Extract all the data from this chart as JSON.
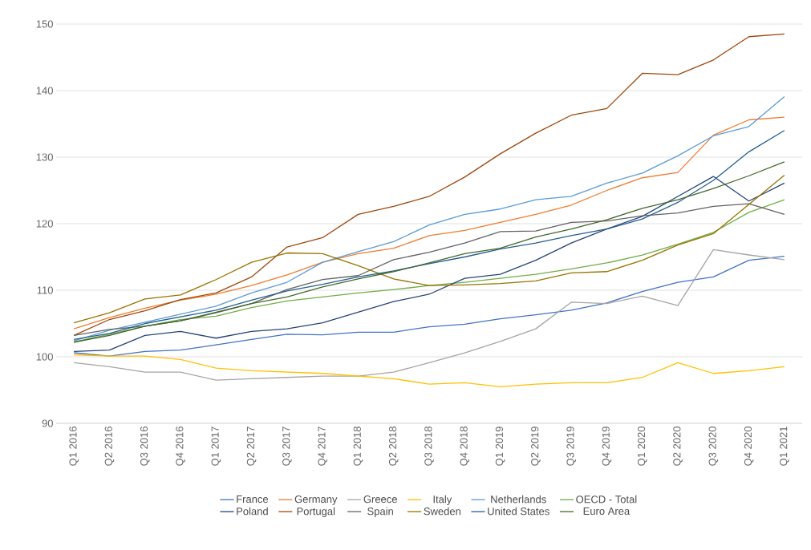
{
  "chart_data": {
    "type": "line",
    "categories": [
      "Q1 2016",
      "Q2 2016",
      "Q3 2016",
      "Q4 2016",
      "Q1 2017",
      "Q2 2017",
      "Q3 2017",
      "Q4 2017",
      "Q1 2018",
      "Q2 2018",
      "Q3 2018",
      "Q4 2018",
      "Q1 2019",
      "Q2 2019",
      "Q3 2019",
      "Q4 2019",
      "Q1 2020",
      "Q2 2020",
      "Q3 2020",
      "Q4 2020",
      "Q1 2021"
    ],
    "series": [
      {
        "name": "France",
        "color": "#4472c4",
        "values": [
          100.6,
          100.1,
          100.8,
          101.0,
          101.8,
          102.6,
          103.4,
          103.3,
          103.7,
          103.7,
          104.5,
          104.9,
          105.7,
          106.3,
          107.0,
          108.1,
          109.8,
          111.2,
          112.0,
          114.5,
          115.1
        ]
      },
      {
        "name": "Germany",
        "color": "#ed7d31",
        "values": [
          104.2,
          105.9,
          107.3,
          108.5,
          109.4,
          110.7,
          112.3,
          114.2,
          115.5,
          116.3,
          118.2,
          119.0,
          120.2,
          121.4,
          122.8,
          125.0,
          126.9,
          127.7,
          133.3,
          135.6,
          136.0
        ]
      },
      {
        "name": "Greece",
        "color": "#a5a5a5",
        "values": [
          99.1,
          98.5,
          97.7,
          97.7,
          96.5,
          96.7,
          96.9,
          97.1,
          97.1,
          97.7,
          99.1,
          100.6,
          102.3,
          104.2,
          108.2,
          108.0,
          109.1,
          107.7,
          116.1,
          115.3,
          114.6
        ]
      },
      {
        "name": "Italy",
        "color": "#ffc000",
        "values": [
          100.3,
          100.1,
          100.1,
          99.6,
          98.3,
          97.9,
          97.7,
          97.5,
          97.1,
          96.7,
          95.9,
          96.1,
          95.5,
          95.9,
          96.1,
          96.1,
          96.9,
          99.1,
          97.5,
          97.9,
          98.5
        ]
      },
      {
        "name": "Netherlands",
        "color": "#5b9bd5",
        "values": [
          102.4,
          104.0,
          105.2,
          106.4,
          107.6,
          109.6,
          111.2,
          114.2,
          115.8,
          117.3,
          119.8,
          121.4,
          122.2,
          123.6,
          124.1,
          126.1,
          127.6,
          130.2,
          133.2,
          134.6,
          139.1
        ]
      },
      {
        "name": "OECD - Total",
        "color": "#70ad47",
        "values": [
          102.2,
          103.4,
          104.6,
          105.6,
          106.1,
          107.4,
          108.4,
          109.0,
          109.6,
          110.1,
          110.7,
          111.2,
          111.8,
          112.4,
          113.2,
          114.1,
          115.3,
          116.9,
          118.7,
          121.7,
          123.6
        ]
      },
      {
        "name": "Poland",
        "color": "#264478",
        "values": [
          100.8,
          101.0,
          103.2,
          103.8,
          102.8,
          103.8,
          104.2,
          105.1,
          106.7,
          108.3,
          109.4,
          111.8,
          112.4,
          114.5,
          117.1,
          119.2,
          121.1,
          124.1,
          127.1,
          123.4,
          126.1
        ]
      },
      {
        "name": "Portugal",
        "color": "#9e480e",
        "values": [
          103.2,
          105.6,
          106.9,
          108.6,
          109.6,
          112.0,
          116.5,
          117.9,
          121.4,
          122.6,
          124.1,
          127.0,
          130.5,
          133.6,
          136.3,
          137.3,
          142.6,
          142.4,
          144.6,
          148.1,
          148.5
        ]
      },
      {
        "name": "Spain",
        "color": "#636363",
        "values": [
          103.2,
          104.1,
          104.6,
          105.4,
          106.6,
          108.0,
          110.1,
          111.6,
          112.2,
          114.6,
          115.7,
          117.1,
          118.8,
          118.9,
          120.2,
          120.4,
          121.2,
          121.6,
          122.6,
          123.0,
          121.4
        ]
      },
      {
        "name": "Sweden",
        "color": "#997300",
        "values": [
          105.1,
          106.6,
          108.7,
          109.3,
          111.6,
          114.2,
          115.6,
          115.5,
          113.7,
          111.7,
          110.7,
          110.8,
          111.0,
          111.4,
          112.6,
          112.8,
          114.5,
          116.8,
          118.5,
          122.9,
          127.3
        ]
      },
      {
        "name": "United States",
        "color": "#255e91",
        "values": [
          102.6,
          103.5,
          105.0,
          106.0,
          107.0,
          108.5,
          109.9,
          110.9,
          112.0,
          112.9,
          114.0,
          115.0,
          116.2,
          117.1,
          118.2,
          119.2,
          120.7,
          123.2,
          126.5,
          130.8,
          134.0
        ]
      },
      {
        "name": "Euro Area",
        "color": "#43682b",
        "values": [
          102.2,
          103.2,
          104.6,
          105.4,
          106.7,
          108.0,
          109.0,
          110.5,
          111.7,
          112.8,
          114.1,
          115.5,
          116.3,
          118.0,
          119.2,
          120.6,
          122.3,
          123.6,
          125.3,
          127.2,
          129.3
        ]
      }
    ],
    "ylim": [
      90,
      150
    ],
    "yticks": [
      90,
      100,
      110,
      120,
      130,
      140,
      150
    ],
    "grid": "y",
    "legend": "bottom",
    "marker": "none",
    "line_style": "solid"
  }
}
